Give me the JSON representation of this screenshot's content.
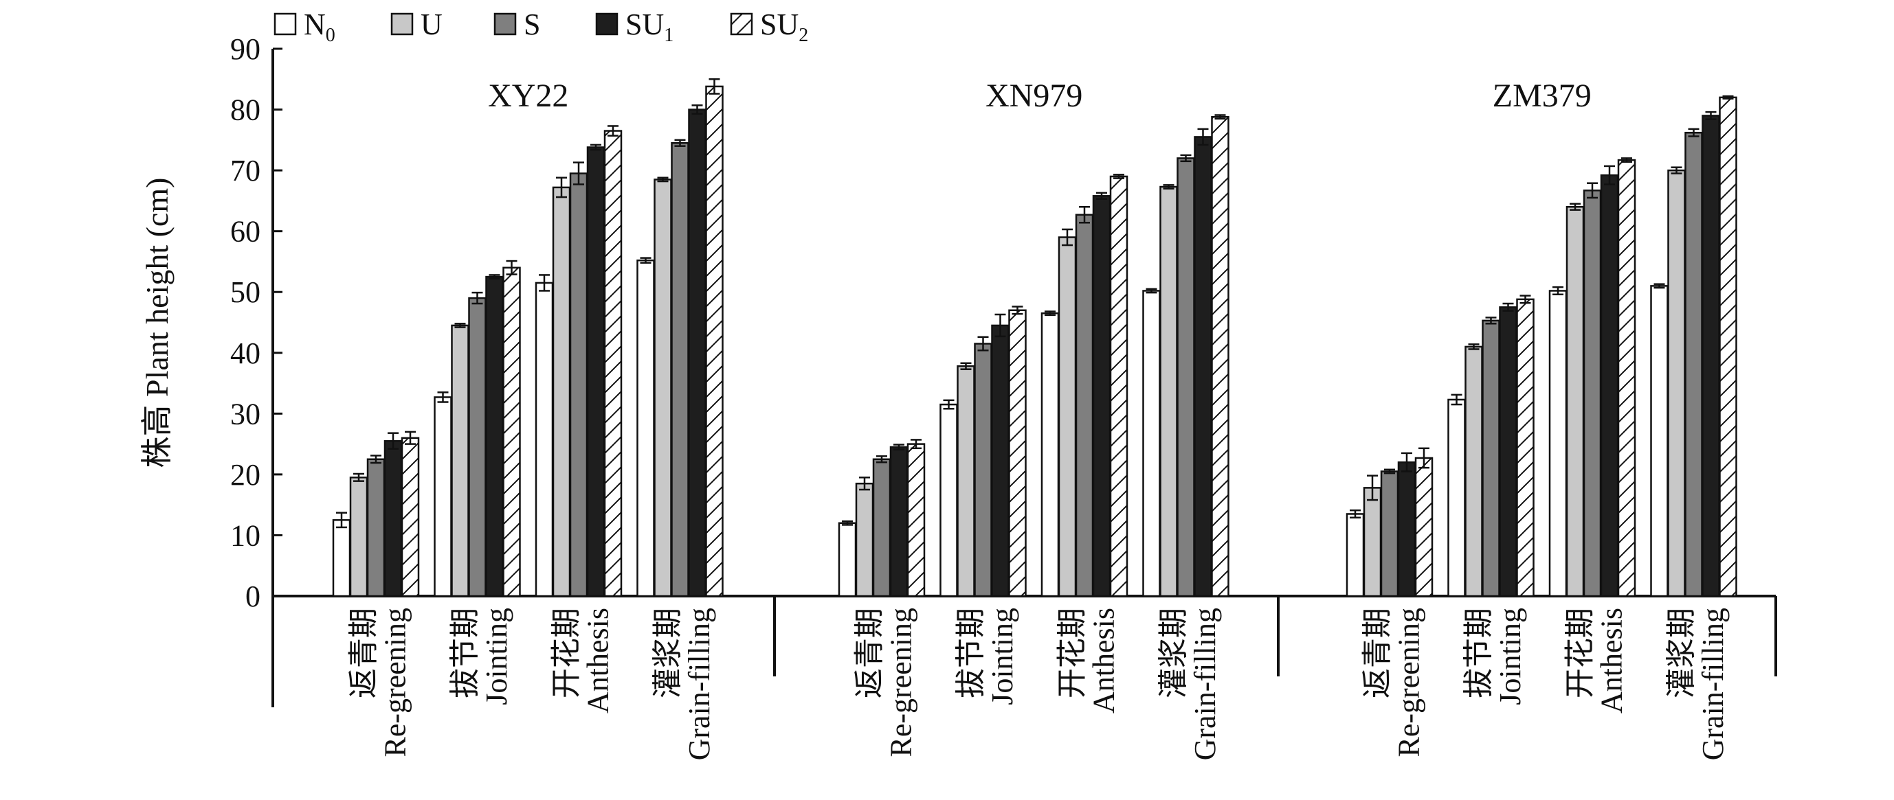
{
  "chart_data": {
    "type": "bar",
    "ylabel": "株高 Plant height (cm)",
    "ylim": [
      0,
      90
    ],
    "yticks": [
      0,
      10,
      20,
      30,
      40,
      50,
      60,
      70,
      80,
      90
    ],
    "grid": false,
    "legend_position": "top-left",
    "legend": [
      {
        "name": "N",
        "subscript": "0",
        "key": "N0",
        "fill": "#ffffff",
        "hatch": false
      },
      {
        "name": "U",
        "subscript": "",
        "key": "U",
        "fill": "#c8c8c8",
        "hatch": false
      },
      {
        "name": "S",
        "subscript": "",
        "key": "S",
        "fill": "#7f7f7f",
        "hatch": false
      },
      {
        "name": "SU",
        "subscript": "1",
        "key": "SU1",
        "fill": "#1e1e1e",
        "hatch": false
      },
      {
        "name": "SU",
        "subscript": "2",
        "key": "SU2",
        "fill": "#ffffff",
        "hatch": true
      }
    ],
    "categories": [
      {
        "zh": "返青期",
        "en": "Re-greening"
      },
      {
        "zh": "拔节期",
        "en": "Jointing"
      },
      {
        "zh": "开花期",
        "en": "Anthesis"
      },
      {
        "zh": "灌浆期",
        "en": "Grain-filling"
      }
    ],
    "groups": [
      {
        "title": "XY22",
        "values": [
          [
            12.5,
            19.5,
            22.5,
            25.5,
            26.0
          ],
          [
            32.7,
            44.5,
            49.0,
            52.5,
            54.0
          ],
          [
            51.5,
            67.2,
            69.5,
            73.8,
            76.5
          ],
          [
            55.2,
            68.5,
            74.5,
            80.0,
            83.8
          ]
        ],
        "errors": [
          [
            1.2,
            0.6,
            0.6,
            1.3,
            1.0
          ],
          [
            0.8,
            0.3,
            0.9,
            0.3,
            1.1
          ],
          [
            1.3,
            1.6,
            1.8,
            0.4,
            0.8
          ],
          [
            0.4,
            0.3,
            0.5,
            0.7,
            1.2
          ]
        ]
      },
      {
        "title": "XN979",
        "values": [
          [
            12.0,
            18.5,
            22.5,
            24.5,
            25.0
          ],
          [
            31.5,
            37.8,
            41.5,
            44.5,
            47.0
          ],
          [
            46.5,
            59.0,
            62.7,
            65.8,
            69.0
          ],
          [
            50.2,
            67.3,
            72.0,
            75.5,
            78.8
          ]
        ],
        "errors": [
          [
            0.3,
            1.0,
            0.5,
            0.4,
            0.7
          ],
          [
            0.7,
            0.5,
            1.1,
            1.8,
            0.6
          ],
          [
            0.3,
            1.3,
            1.3,
            0.5,
            0.3
          ],
          [
            0.3,
            0.3,
            0.5,
            1.3,
            0.3
          ]
        ]
      },
      {
        "title": "ZM379",
        "values": [
          [
            13.5,
            17.8,
            20.5,
            22.0,
            22.7
          ],
          [
            32.3,
            41.0,
            45.3,
            47.5,
            48.8
          ],
          [
            50.2,
            64.0,
            66.7,
            69.2,
            71.7
          ],
          [
            51.0,
            70.0,
            76.2,
            79.0,
            82.0
          ]
        ],
        "errors": [
          [
            0.6,
            2.0,
            0.3,
            1.5,
            1.6
          ],
          [
            0.8,
            0.4,
            0.5,
            0.6,
            0.6
          ],
          [
            0.6,
            0.5,
            1.2,
            1.5,
            0.3
          ],
          [
            0.3,
            0.5,
            0.6,
            0.6,
            0.2
          ]
        ]
      }
    ]
  }
}
